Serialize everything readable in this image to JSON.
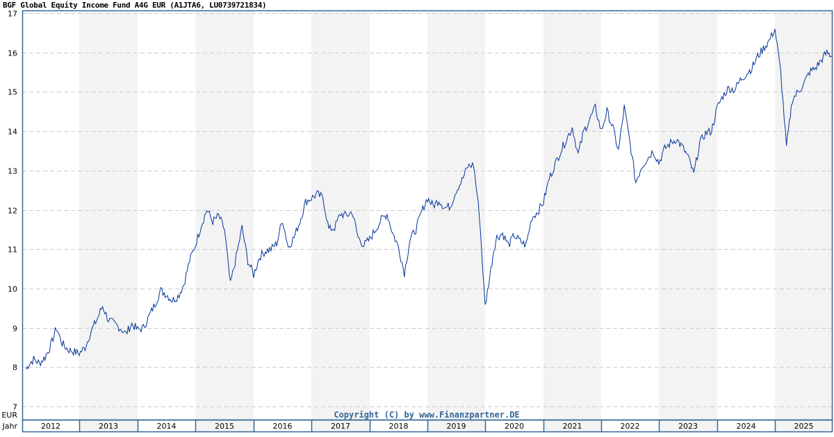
{
  "title": "BGF Global Equity Income Fund A4G EUR (A1JTA6, LU0739721834)",
  "copyright": "Copyright (C) by www.Finanzpartner.DE",
  "y_unit_label": "EUR",
  "x_axis_label": "Jahr",
  "colors": {
    "line": "#003399",
    "frame": "#336699",
    "band_alt": "#f3f3f3",
    "grid": "#cccccc",
    "copyright": "#336699"
  },
  "chart_data": {
    "type": "line",
    "title": "BGF Global Equity Income Fund A4G EUR (A1JTA6, LU0739721834)",
    "xlabel": "Jahr",
    "ylabel": "EUR",
    "ylim": [
      7,
      17
    ],
    "yticks": [
      7,
      8,
      9,
      10,
      11,
      12,
      13,
      14,
      15,
      16,
      17
    ],
    "grid": true,
    "legend": null,
    "categories": [
      "2012",
      "2013",
      "2014",
      "2015",
      "2016",
      "2017",
      "2018",
      "2019",
      "2020",
      "2021",
      "2022",
      "2023",
      "2024",
      "2025"
    ],
    "x_year_fraction": [
      2012.0,
      2012.1,
      2012.2,
      2012.3,
      2012.4,
      2012.5,
      2012.6,
      2012.7,
      2012.8,
      2012.9,
      2013.0,
      2013.1,
      2013.2,
      2013.3,
      2013.4,
      2013.5,
      2013.6,
      2013.7,
      2013.8,
      2013.9,
      2014.0,
      2014.1,
      2014.2,
      2014.3,
      2014.4,
      2014.5,
      2014.6,
      2014.7,
      2014.8,
      2014.9,
      2015.0,
      2015.1,
      2015.2,
      2015.3,
      2015.4,
      2015.5,
      2015.6,
      2015.7,
      2015.8,
      2015.9,
      2016.0,
      2016.1,
      2016.2,
      2016.3,
      2016.4,
      2016.5,
      2016.6,
      2016.7,
      2016.8,
      2016.9,
      2017.0,
      2017.1,
      2017.2,
      2017.3,
      2017.4,
      2017.5,
      2017.6,
      2017.7,
      2017.8,
      2017.9,
      2018.0,
      2018.1,
      2018.2,
      2018.3,
      2018.4,
      2018.5,
      2018.6,
      2018.7,
      2018.8,
      2018.9,
      2019.0,
      2019.1,
      2019.2,
      2019.3,
      2019.4,
      2019.5,
      2019.6,
      2019.7,
      2019.8,
      2019.9,
      2020.0,
      2020.1,
      2020.15,
      2020.2,
      2020.3,
      2020.4,
      2020.5,
      2020.6,
      2020.7,
      2020.8,
      2020.9,
      2021.0,
      2021.1,
      2021.2,
      2021.3,
      2021.4,
      2021.5,
      2021.6,
      2021.7,
      2021.8,
      2021.9,
      2022.0,
      2022.1,
      2022.2,
      2022.3,
      2022.4,
      2022.5,
      2022.6,
      2022.7,
      2022.8,
      2022.9,
      2023.0,
      2023.1,
      2023.2,
      2023.3,
      2023.4,
      2023.5,
      2023.6,
      2023.7,
      2023.8,
      2023.9,
      2024.0,
      2024.1,
      2024.2,
      2024.3,
      2024.4,
      2024.5,
      2024.6,
      2024.7,
      2024.8,
      2024.9,
      2025.0,
      2025.1,
      2025.2,
      2025.25,
      2025.3,
      2025.4,
      2025.5,
      2025.6,
      2025.7,
      2025.8,
      2025.9,
      2025.99
    ],
    "values": [
      7.95,
      8.05,
      8.2,
      8.1,
      8.25,
      8.55,
      9.0,
      8.6,
      8.45,
      8.4,
      8.35,
      8.5,
      8.9,
      9.2,
      9.55,
      9.2,
      9.1,
      9.0,
      8.85,
      9.1,
      8.95,
      9.0,
      9.3,
      9.6,
      9.95,
      9.85,
      9.7,
      9.8,
      10.1,
      10.7,
      11.1,
      11.6,
      12.0,
      11.7,
      11.85,
      11.5,
      10.1,
      10.8,
      11.55,
      10.7,
      10.35,
      10.8,
      10.95,
      11.0,
      11.15,
      11.75,
      11.05,
      11.3,
      11.7,
      12.2,
      12.3,
      12.4,
      12.3,
      11.5,
      11.55,
      11.9,
      11.85,
      11.95,
      11.3,
      11.1,
      11.25,
      11.5,
      11.75,
      11.9,
      11.4,
      11.05,
      10.4,
      11.25,
      11.5,
      11.95,
      12.3,
      12.1,
      12.25,
      12.05,
      12.1,
      12.5,
      12.75,
      13.1,
      13.15,
      11.9,
      9.55,
      10.5,
      11.0,
      11.3,
      11.4,
      11.1,
      11.35,
      11.2,
      11.1,
      11.8,
      11.95,
      12.2,
      12.8,
      13.15,
      13.5,
      13.8,
      14.1,
      13.4,
      14.0,
      14.3,
      14.6,
      14.0,
      14.5,
      14.1,
      13.5,
      14.6,
      13.7,
      12.7,
      13.1,
      13.3,
      13.5,
      13.2,
      13.55,
      13.7,
      13.8,
      13.6,
      13.35,
      12.9,
      13.7,
      13.95,
      14.0,
      14.6,
      14.9,
      15.1,
      15.05,
      15.3,
      15.45,
      15.6,
      15.9,
      16.1,
      16.3,
      16.6,
      15.5,
      13.6,
      14.2,
      14.8,
      15.0,
      15.2,
      15.5,
      15.6,
      15.8,
      16.0,
      15.9
    ]
  },
  "years": [
    "2012",
    "2013",
    "2014",
    "2015",
    "2016",
    "2017",
    "2018",
    "2019",
    "2020",
    "2021",
    "2022",
    "2023",
    "2024",
    "2025"
  ]
}
